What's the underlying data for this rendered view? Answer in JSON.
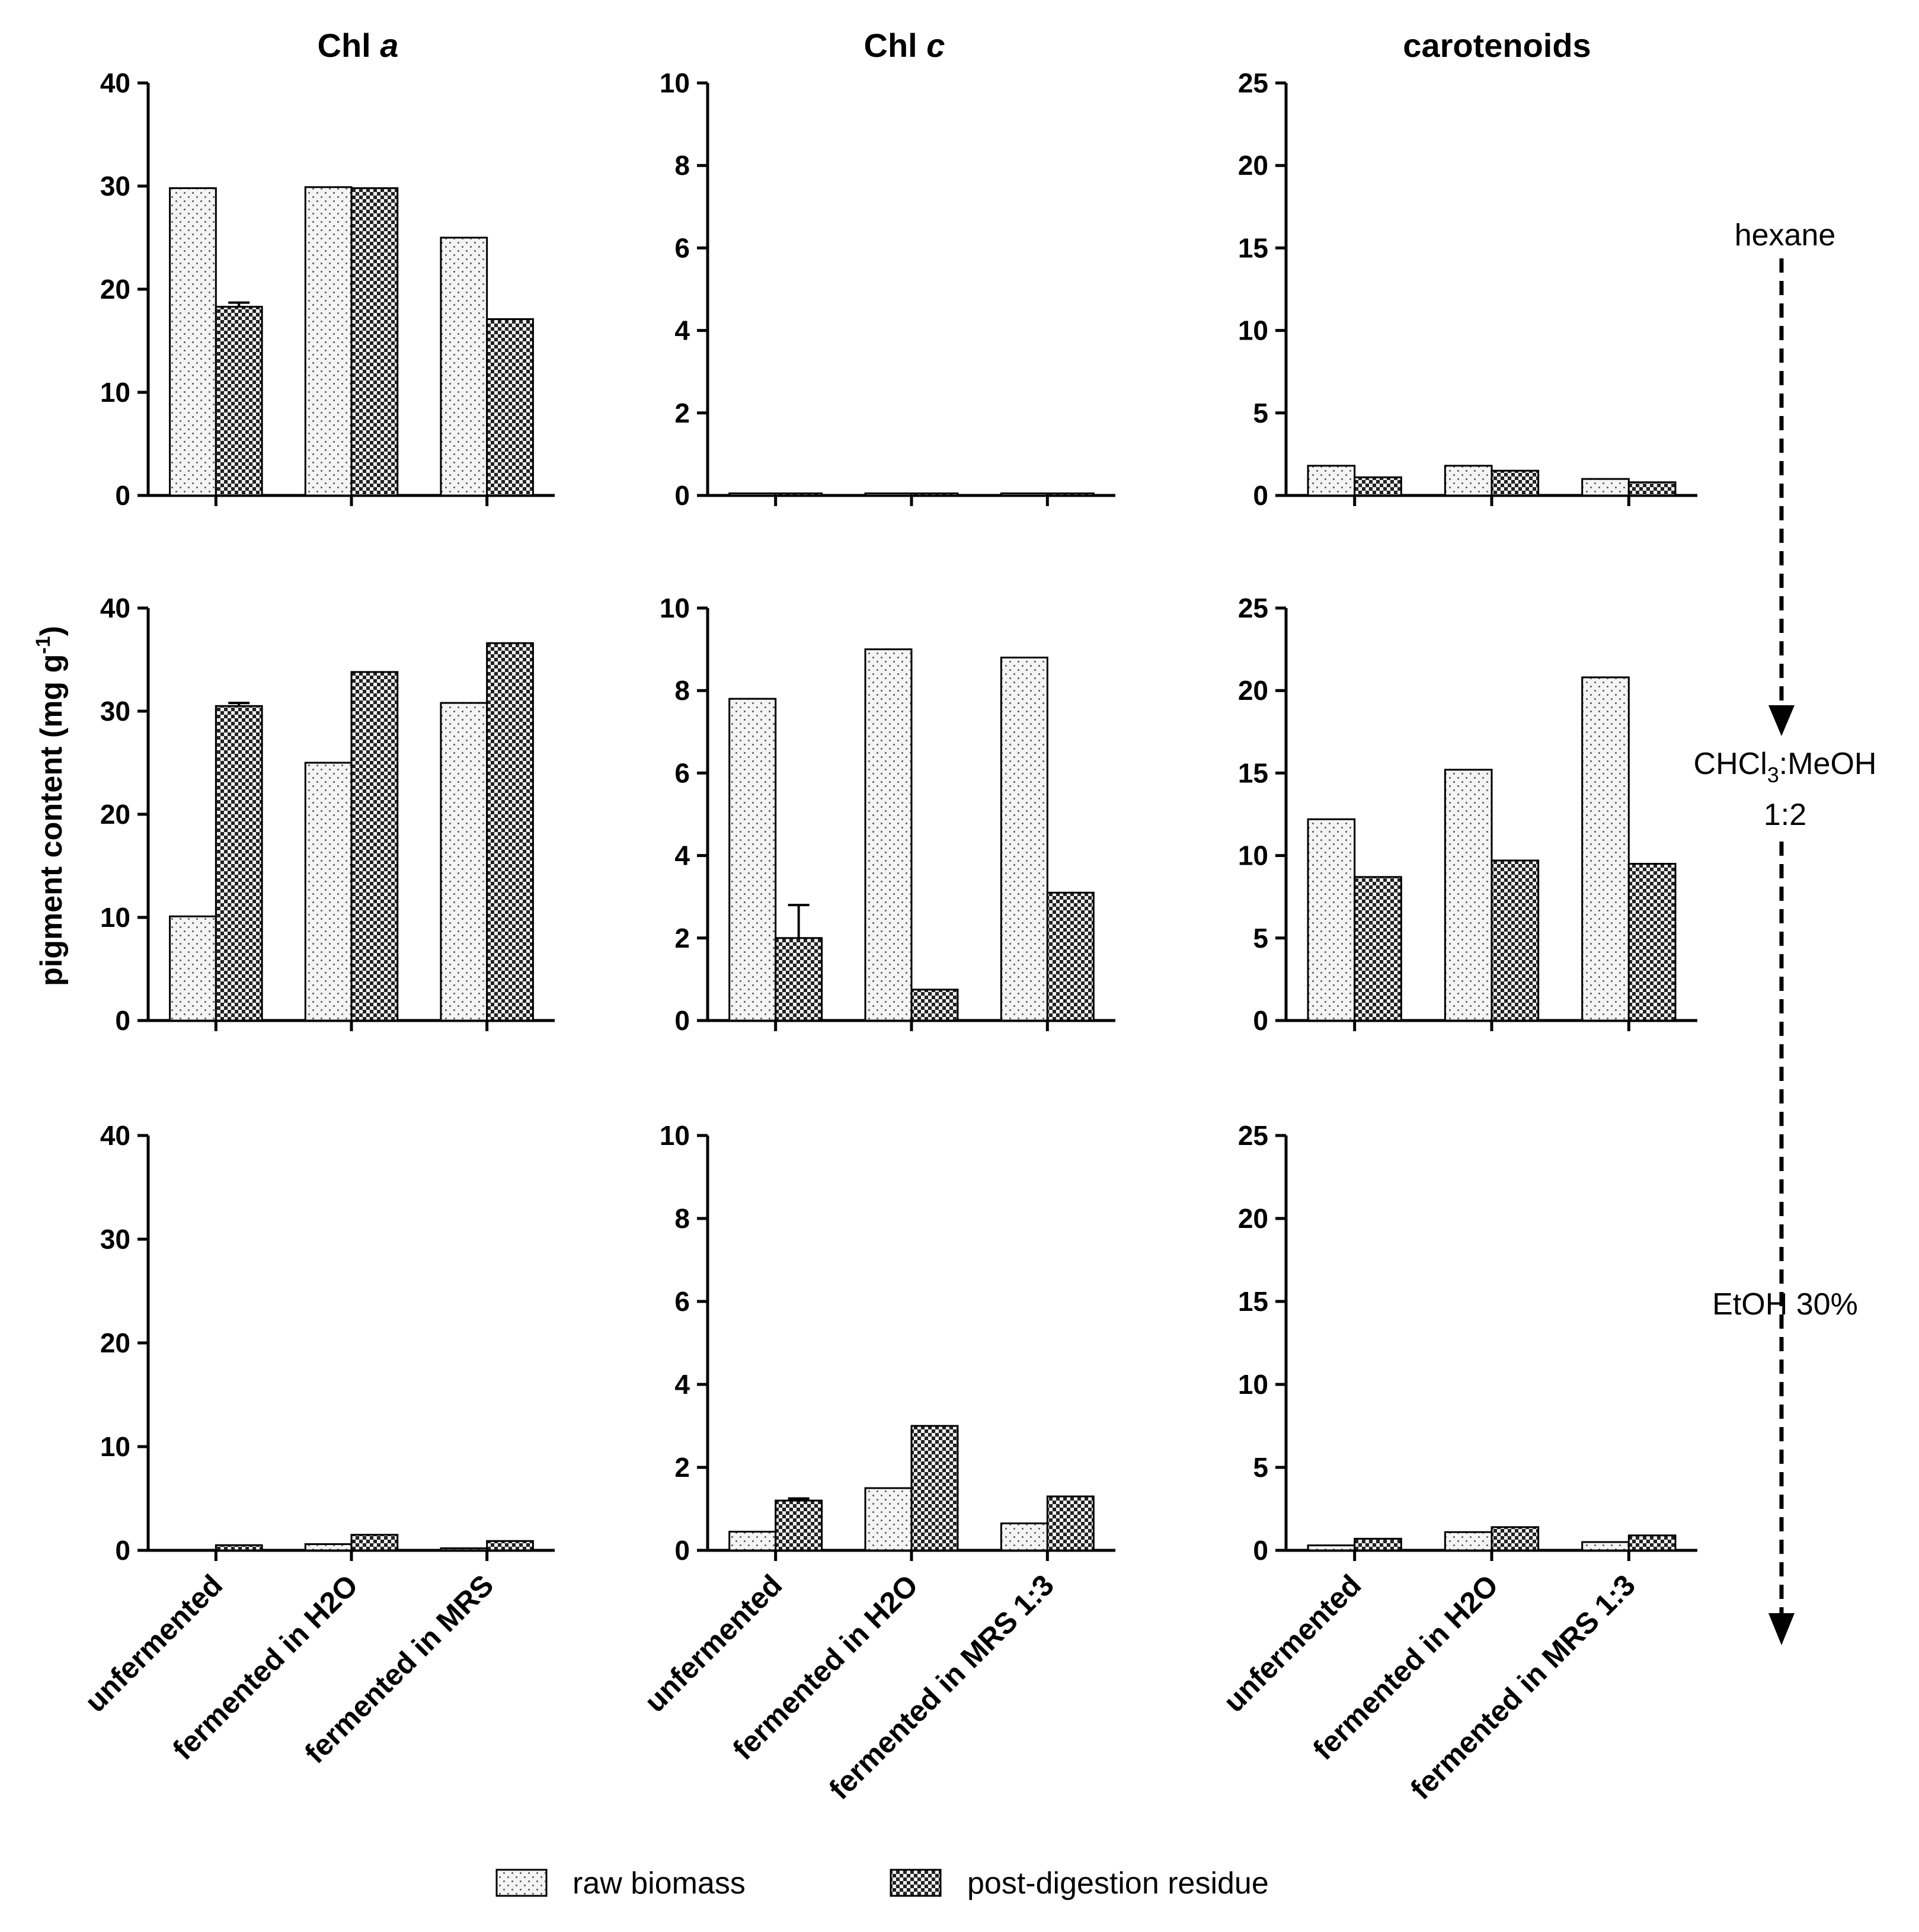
{
  "columns": [
    {
      "title_prefix": "Chl ",
      "title_italic": "a"
    },
    {
      "title_prefix": "Chl ",
      "title_italic": "c"
    },
    {
      "title_prefix": "carotenoids",
      "title_italic": ""
    }
  ],
  "ylabel": {
    "main": "pigment content (mg g",
    "sup": "-1",
    "close": ")"
  },
  "side_labels": {
    "hexane": "hexane",
    "chcl3": {
      "a": "CHCl",
      "sub": "3",
      "b": ":MeOH"
    },
    "ratio": "1:2",
    "etoh": "EtOH 30%"
  },
  "legend": {
    "raw": "raw biomass",
    "post": "post-digestion residue"
  },
  "colors": {
    "axis": "#000000",
    "raw_fill": "#f4f4f4",
    "post_fill": "#6e6e6e"
  },
  "chart_data": [
    {
      "type": "bar",
      "panel": "row1-Chl a",
      "ylim": [
        0,
        40
      ],
      "ticks": [
        0,
        10,
        20,
        30,
        40
      ],
      "categories": [
        "unfermented",
        "fermented in H2O",
        "fermented in MRS"
      ],
      "series": [
        {
          "name": "raw biomass",
          "values": [
            29.8,
            29.9,
            25.0
          ]
        },
        {
          "name": "post-digestion residue",
          "values": [
            18.3,
            29.8,
            17.1
          ],
          "errors": [
            0.4,
            0,
            0
          ]
        }
      ]
    },
    {
      "type": "bar",
      "panel": "row1-Chl c",
      "ylim": [
        0,
        10
      ],
      "ticks": [
        0,
        2,
        4,
        6,
        8,
        10
      ],
      "categories": [
        "unfermented",
        "fermented in H2O",
        "fermented in MRS 1:3"
      ],
      "series": [
        {
          "name": "raw biomass",
          "values": [
            0.05,
            0.05,
            0.05
          ]
        },
        {
          "name": "post-digestion residue",
          "values": [
            0.05,
            0.05,
            0.05
          ]
        }
      ]
    },
    {
      "type": "bar",
      "panel": "row1-carotenoids",
      "ylim": [
        0,
        25
      ],
      "ticks": [
        0,
        5,
        10,
        15,
        20,
        25
      ],
      "categories": [
        "unfermented",
        "fermented in H2O",
        "fermented in MRS 1:3"
      ],
      "series": [
        {
          "name": "raw biomass",
          "values": [
            1.8,
            1.8,
            1.0
          ]
        },
        {
          "name": "post-digestion residue",
          "values": [
            1.1,
            1.5,
            0.8
          ]
        }
      ]
    },
    {
      "type": "bar",
      "panel": "row2-Chl a",
      "ylim": [
        0,
        40
      ],
      "ticks": [
        0,
        10,
        20,
        30,
        40
      ],
      "categories": [
        "unfermented",
        "fermented in H2O",
        "fermented in MRS"
      ],
      "series": [
        {
          "name": "raw biomass",
          "values": [
            10.1,
            25.0,
            30.8
          ]
        },
        {
          "name": "post-digestion residue",
          "values": [
            30.5,
            33.8,
            36.6
          ],
          "errors": [
            0.3,
            0,
            0
          ]
        }
      ]
    },
    {
      "type": "bar",
      "panel": "row2-Chl c",
      "ylim": [
        0,
        10
      ],
      "ticks": [
        0,
        2,
        4,
        6,
        8,
        10
      ],
      "categories": [
        "unfermented",
        "fermented in H2O",
        "fermented in MRS 1:3"
      ],
      "series": [
        {
          "name": "raw biomass",
          "values": [
            7.8,
            9.0,
            8.8
          ]
        },
        {
          "name": "post-digestion residue",
          "values": [
            2.0,
            0.75,
            3.1
          ],
          "errors": [
            0.8,
            0,
            0
          ]
        }
      ]
    },
    {
      "type": "bar",
      "panel": "row2-carotenoids",
      "ylim": [
        0,
        25
      ],
      "ticks": [
        0,
        5,
        10,
        15,
        20,
        25
      ],
      "categories": [
        "unfermented",
        "fermented in H2O",
        "fermented in MRS 1:3"
      ],
      "series": [
        {
          "name": "raw biomass",
          "values": [
            12.2,
            15.2,
            20.8
          ]
        },
        {
          "name": "post-digestion residue",
          "values": [
            8.7,
            9.7,
            9.5
          ]
        }
      ]
    },
    {
      "type": "bar",
      "panel": "row3-Chl a",
      "ylim": [
        0,
        40
      ],
      "ticks": [
        0,
        10,
        20,
        30,
        40
      ],
      "categories": [
        "unfermented",
        "fermented in H2O",
        "fermented in MRS"
      ],
      "series": [
        {
          "name": "raw biomass",
          "values": [
            0.0,
            0.6,
            0.2
          ]
        },
        {
          "name": "post-digestion residue",
          "values": [
            0.5,
            1.5,
            0.9
          ]
        }
      ]
    },
    {
      "type": "bar",
      "panel": "row3-Chl c",
      "ylim": [
        0,
        10
      ],
      "ticks": [
        0,
        2,
        4,
        6,
        8,
        10
      ],
      "categories": [
        "unfermented",
        "fermented in H2O",
        "fermented in MRS 1:3"
      ],
      "series": [
        {
          "name": "raw biomass",
          "values": [
            0.45,
            1.5,
            0.65
          ]
        },
        {
          "name": "post-digestion residue",
          "values": [
            1.2,
            3.0,
            1.3
          ],
          "errors": [
            0.05,
            0,
            0
          ]
        }
      ]
    },
    {
      "type": "bar",
      "panel": "row3-carotenoids",
      "ylim": [
        0,
        25
      ],
      "ticks": [
        0,
        5,
        10,
        15,
        20,
        25
      ],
      "categories": [
        "unfermented",
        "fermented in H2O",
        "fermented in MRS 1:3"
      ],
      "series": [
        {
          "name": "raw biomass",
          "values": [
            0.3,
            1.1,
            0.5
          ]
        },
        {
          "name": "post-digestion residue",
          "values": [
            0.7,
            1.4,
            0.9
          ]
        }
      ]
    }
  ]
}
